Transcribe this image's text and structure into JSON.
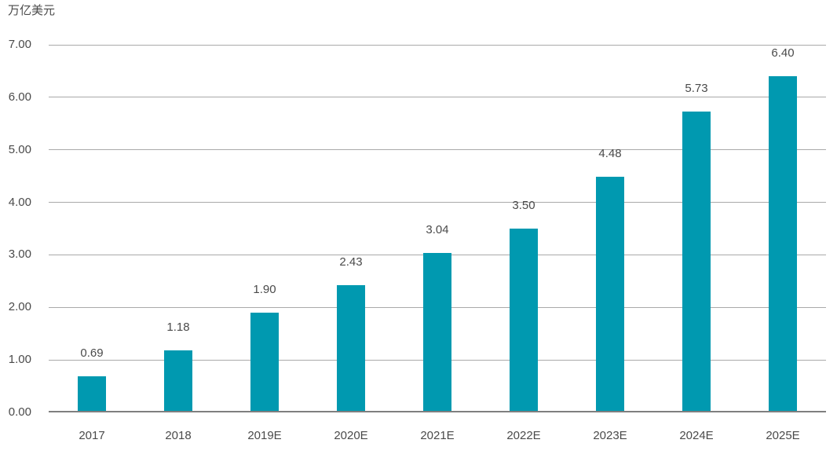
{
  "chart_data": {
    "type": "bar",
    "title": "",
    "ylabel": "万亿美元",
    "categories": [
      "2017",
      "2018",
      "2019E",
      "2020E",
      "2021E",
      "2022E",
      "2023E",
      "2024E",
      "2025E"
    ],
    "values": [
      0.69,
      1.18,
      1.9,
      2.43,
      3.04,
      3.5,
      4.48,
      5.73,
      6.4
    ],
    "value_labels": [
      "0.69",
      "1.18",
      "1.90",
      "2.43",
      "3.04",
      "3.50",
      "4.48",
      "5.73",
      "6.40"
    ],
    "ylim": [
      0,
      7
    ],
    "ytick_step": 1,
    "ytick_labels": [
      "0.00",
      "1.00",
      "2.00",
      "3.00",
      "4.00",
      "5.00",
      "6.00",
      "7.00"
    ],
    "grid": true,
    "legend_position": "none",
    "colors": {
      "bar": "#0099B0",
      "gridline": "#A9A9A9",
      "axis_line": "#7F7F7F",
      "text": "#4A4A4A"
    }
  }
}
